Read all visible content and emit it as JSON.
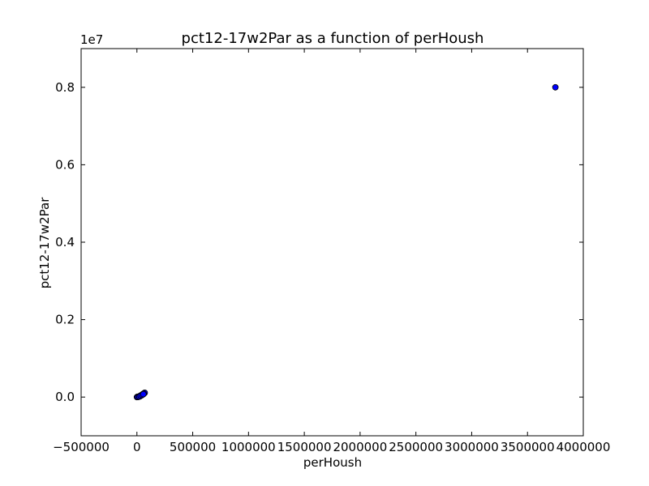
{
  "chart_data": {
    "type": "scatter",
    "title": "pct12-17w2Par as a function of perHoush",
    "xlabel": "perHoush",
    "ylabel": "pct12-17w2Par",
    "xlim": [
      -500000,
      4000000
    ],
    "ylim": [
      -1000000,
      9000000
    ],
    "y_offset_label": "1e7",
    "x_ticks": [
      {
        "value": -500000,
        "label": "−500000"
      },
      {
        "value": 0,
        "label": "0"
      },
      {
        "value": 500000,
        "label": "500000"
      },
      {
        "value": 1000000,
        "label": "1000000"
      },
      {
        "value": 1500000,
        "label": "1500000"
      },
      {
        "value": 2000000,
        "label": "2000000"
      },
      {
        "value": 2500000,
        "label": "2500000"
      },
      {
        "value": 3000000,
        "label": "3000000"
      },
      {
        "value": 3500000,
        "label": "3500000"
      },
      {
        "value": 4000000,
        "label": "4000000"
      }
    ],
    "y_ticks": [
      {
        "value": 0,
        "label": "0.0"
      },
      {
        "value": 2000000,
        "label": "0.2"
      },
      {
        "value": 4000000,
        "label": "0.4"
      },
      {
        "value": 6000000,
        "label": "0.6"
      },
      {
        "value": 8000000,
        "label": "0.8"
      }
    ],
    "marker_color": "#0000ff",
    "marker_edge_color": "#000000",
    "grid": false,
    "series": [
      {
        "x": [
          3750000,
          0,
          5000,
          10000,
          15000,
          20000,
          25000,
          30000,
          35000,
          40000,
          45000,
          50000,
          55000,
          60000,
          65000,
          70000,
          8000,
          18000,
          28000,
          42000,
          52000,
          62000,
          3000,
          12000,
          22000,
          33000,
          47000,
          58000
        ],
        "y": [
          8000000,
          0,
          5000,
          8000,
          12000,
          18000,
          25000,
          30000,
          40000,
          50000,
          60000,
          70000,
          80000,
          90000,
          100000,
          110000,
          2000,
          10000,
          20000,
          45000,
          65000,
          85000,
          1000,
          6000,
          14000,
          35000,
          55000,
          75000
        ]
      }
    ]
  }
}
